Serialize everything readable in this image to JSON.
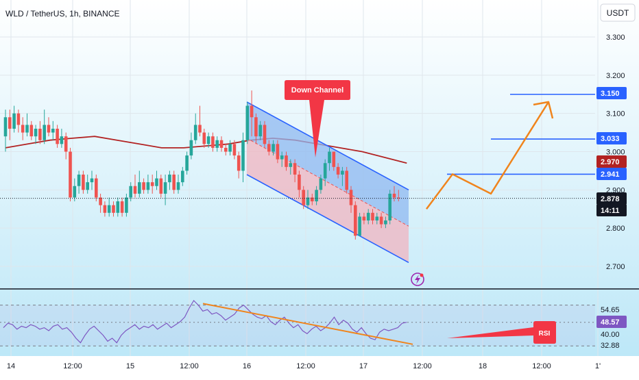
{
  "header": {
    "symbol_line": "WLD / TetherUS, 1h, BINANCE",
    "currency_button": "USDT"
  },
  "colors": {
    "bg_top": "#ffffff",
    "bg_bottom": "#b9e6f7",
    "up": "#26a69a",
    "down": "#ef5350",
    "ma": "#b22222",
    "channel_line": "#2962ff",
    "channel_upper_fill": "#8fb8f0",
    "channel_lower_fill": "#f0b4c0",
    "projection": "#f0841c",
    "rsi_line": "#7e57c2",
    "callout": "#f23645"
  },
  "chart_data": [
    {
      "type": "candlestick",
      "title": "WLD / TetherUS, 1h, BINANCE",
      "y_axis": {
        "ticks": [
          3.3,
          3.2,
          3.1,
          3.0,
          2.9,
          2.8,
          2.7
        ],
        "tick_labels": [
          "3.300",
          "3.200",
          "3.100",
          "3.000",
          "2.900",
          "2.800",
          "2.700"
        ],
        "range": [
          2.64,
          3.4
        ]
      },
      "x_axis": {
        "tick_labels": [
          "14",
          "12:00",
          "15",
          "12:00",
          "16",
          "12:00",
          "17",
          "12:00",
          "18",
          "12:00",
          "1'"
        ]
      },
      "candles": [
        [
          3.04,
          3.09,
          3.11,
          3.0
        ],
        [
          3.09,
          3.06,
          3.11,
          3.03
        ],
        [
          3.06,
          3.1,
          3.12,
          3.05
        ],
        [
          3.1,
          3.07,
          3.11,
          3.05
        ],
        [
          3.07,
          3.05,
          3.09,
          3.03
        ],
        [
          3.05,
          3.07,
          3.1,
          3.04
        ],
        [
          3.07,
          3.04,
          3.08,
          3.03
        ],
        [
          3.04,
          3.06,
          3.07,
          3.02
        ],
        [
          3.06,
          3.03,
          3.08,
          3.02
        ],
        [
          3.03,
          3.07,
          3.11,
          3.02
        ],
        [
          3.07,
          3.05,
          3.09,
          3.04
        ],
        [
          3.05,
          3.06,
          3.08,
          3.03
        ],
        [
          3.06,
          3.02,
          3.07,
          3.01
        ],
        [
          3.02,
          3.04,
          3.06,
          3.01
        ],
        [
          3.04,
          3.0,
          3.05,
          2.98
        ],
        [
          3.0,
          2.88,
          3.01,
          2.87
        ],
        [
          2.88,
          2.91,
          2.93,
          2.87
        ],
        [
          2.91,
          2.94,
          2.95,
          2.89
        ],
        [
          2.94,
          2.9,
          2.95,
          2.89
        ],
        [
          2.9,
          2.92,
          2.94,
          2.89
        ],
        [
          2.92,
          2.93,
          2.95,
          2.9
        ],
        [
          2.93,
          2.88,
          2.94,
          2.87
        ],
        [
          2.88,
          2.86,
          2.89,
          2.84
        ],
        [
          2.86,
          2.84,
          2.87,
          2.83
        ],
        [
          2.84,
          2.86,
          2.88,
          2.83
        ],
        [
          2.86,
          2.84,
          2.87,
          2.83
        ],
        [
          2.84,
          2.87,
          2.88,
          2.83
        ],
        [
          2.87,
          2.84,
          2.88,
          2.83
        ],
        [
          2.84,
          2.88,
          2.89,
          2.83
        ],
        [
          2.88,
          2.91,
          2.92,
          2.87
        ],
        [
          2.91,
          2.89,
          2.94,
          2.88
        ],
        [
          2.89,
          2.92,
          2.95,
          2.88
        ],
        [
          2.92,
          2.9,
          2.93,
          2.89
        ],
        [
          2.9,
          2.92,
          2.94,
          2.89
        ],
        [
          2.92,
          2.91,
          2.94,
          2.89
        ],
        [
          2.91,
          2.93,
          2.95,
          2.9
        ],
        [
          2.93,
          2.89,
          2.94,
          2.88
        ],
        [
          2.89,
          2.92,
          2.94,
          2.86
        ],
        [
          2.92,
          2.94,
          2.95,
          2.9
        ],
        [
          2.94,
          2.9,
          2.95,
          2.89
        ],
        [
          2.9,
          2.92,
          2.94,
          2.89
        ],
        [
          2.92,
          2.95,
          2.96,
          2.91
        ],
        [
          2.95,
          2.99,
          3.0,
          2.94
        ],
        [
          2.99,
          3.03,
          3.05,
          2.98
        ],
        [
          3.03,
          3.07,
          3.1,
          3.02
        ],
        [
          3.07,
          3.05,
          3.12,
          3.04
        ],
        [
          3.05,
          3.02,
          3.06,
          3.01
        ],
        [
          3.02,
          3.04,
          3.05,
          3.01
        ],
        [
          3.04,
          3.01,
          3.05,
          3.0
        ],
        [
          3.01,
          3.03,
          3.04,
          3.0
        ],
        [
          3.03,
          3.01,
          3.04,
          3.0
        ],
        [
          3.01,
          3.0,
          3.02,
          2.99
        ],
        [
          3.0,
          3.02,
          3.03,
          2.99
        ],
        [
          3.02,
          2.99,
          3.03,
          2.98
        ],
        [
          2.99,
          2.95,
          3.0,
          2.93
        ],
        [
          2.95,
          3.03,
          3.05,
          2.92
        ],
        [
          3.03,
          3.12,
          3.13,
          3.02
        ],
        [
          3.12,
          3.09,
          3.16,
          3.04
        ],
        [
          3.09,
          3.04,
          3.1,
          3.02
        ],
        [
          3.04,
          3.07,
          3.08,
          3.03
        ],
        [
          3.07,
          3.02,
          3.08,
          3.01
        ],
        [
          3.02,
          3.0,
          3.03,
          2.99
        ],
        [
          3.0,
          3.02,
          3.03,
          2.99
        ],
        [
          3.02,
          2.98,
          3.03,
          2.97
        ],
        [
          2.98,
          2.99,
          3.0,
          2.96
        ],
        [
          2.99,
          2.96,
          3.0,
          2.95
        ],
        [
          2.96,
          2.97,
          2.98,
          2.94
        ],
        [
          2.97,
          2.94,
          2.98,
          2.92
        ],
        [
          2.94,
          2.9,
          2.95,
          2.88
        ],
        [
          2.9,
          2.86,
          2.91,
          2.85
        ],
        [
          2.86,
          2.88,
          2.9,
          2.85
        ],
        [
          2.88,
          2.87,
          2.89,
          2.86
        ],
        [
          2.87,
          2.9,
          2.91,
          2.86
        ],
        [
          2.9,
          2.93,
          2.94,
          2.89
        ],
        [
          2.93,
          2.97,
          2.98,
          2.91
        ],
        [
          2.97,
          3.0,
          3.01,
          2.95
        ],
        [
          3.0,
          2.96,
          3.0,
          2.95
        ],
        [
          2.96,
          2.94,
          2.97,
          2.93
        ],
        [
          2.94,
          2.95,
          2.96,
          2.91
        ],
        [
          2.95,
          2.9,
          2.96,
          2.89
        ],
        [
          2.9,
          2.86,
          2.91,
          2.84
        ],
        [
          2.86,
          2.78,
          2.87,
          2.77
        ],
        [
          2.78,
          2.83,
          2.84,
          2.78
        ],
        [
          2.83,
          2.82,
          2.84,
          2.81
        ],
        [
          2.82,
          2.84,
          2.85,
          2.81
        ],
        [
          2.84,
          2.82,
          2.85,
          2.81
        ],
        [
          2.82,
          2.83,
          2.84,
          2.81
        ],
        [
          2.83,
          2.81,
          2.84,
          2.8
        ],
        [
          2.81,
          2.82,
          2.83,
          2.8
        ],
        [
          2.82,
          2.89,
          2.9,
          2.81
        ],
        [
          2.89,
          2.88,
          2.91,
          2.87
        ],
        [
          2.88,
          2.878,
          2.9,
          2.87
        ]
      ],
      "moving_average": [
        3.01,
        3.02,
        3.03,
        3.035,
        3.04,
        3.03,
        3.02,
        3.01,
        3.01,
        3.015,
        3.02,
        3.03,
        3.035,
        3.03,
        3.02,
        3.01,
        3.0,
        2.985,
        2.97
      ],
      "channel": {
        "upper_start": 3.13,
        "upper_end": 2.9,
        "lower_start": 2.94,
        "lower_end": 2.71
      },
      "levels": [
        3.15,
        3.033,
        2.941
      ],
      "projection": [
        [
          2.85,
          2.941
        ],
        [
          2.89,
          3.13
        ],
        [
          3.11
        ]
      ],
      "price_labels": [
        {
          "text": "3.150",
          "kind": "level"
        },
        {
          "text": "3.033",
          "kind": "level"
        },
        {
          "text": "2.970",
          "kind": "ma"
        },
        {
          "text": "2.941",
          "kind": "level"
        },
        {
          "text": "2.878",
          "kind": "current"
        },
        {
          "text": "14:11",
          "kind": "countdown"
        }
      ],
      "current_price": 2.878,
      "annotation": "Down Channel"
    },
    {
      "type": "line",
      "title": "",
      "y_axis": {
        "tick_labels": [
          "54.65",
          "48.57",
          "40.00",
          "32.88"
        ],
        "values": [
          54.65,
          48.57,
          40.0,
          32.88
        ],
        "range": [
          28,
          68
        ]
      },
      "values": [
        45,
        48,
        47,
        44,
        46,
        45,
        47,
        46,
        44,
        45,
        43,
        46,
        47,
        44,
        45,
        42,
        38,
        35,
        40,
        44,
        46,
        43,
        40,
        36,
        38,
        35,
        40,
        43,
        45,
        47,
        44,
        46,
        45,
        47,
        44,
        46,
        48,
        45,
        47,
        49,
        52,
        58,
        63,
        60,
        56,
        57,
        54,
        55,
        53,
        50,
        52,
        54,
        58,
        60,
        57,
        54,
        52,
        51,
        53,
        49,
        47,
        50,
        52,
        48,
        45,
        47,
        43,
        41,
        44,
        46,
        43,
        45,
        48,
        52,
        47,
        50,
        48,
        44,
        42,
        45,
        41,
        38,
        37,
        42,
        44,
        43,
        44,
        45,
        48,
        48.57
      ],
      "rsi_trendline": [
        61,
        34
      ],
      "bands": [
        60,
        54.65,
        48.57,
        40.0,
        32.88
      ],
      "annotation": "RSI"
    }
  ]
}
